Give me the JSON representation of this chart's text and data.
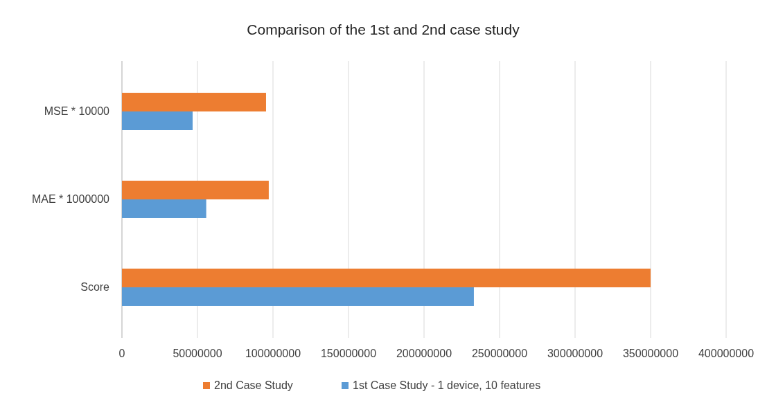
{
  "chart_data": {
    "type": "bar",
    "orientation": "horizontal",
    "title": "Comparison of the 1st and 2nd case study",
    "categories": [
      "MSE * 10000",
      "MAE * 1000000",
      "Score"
    ],
    "series": [
      {
        "name": "2nd Case Study",
        "color": "#ed7d31",
        "values": [
          95400000,
          97200000,
          350000000
        ]
      },
      {
        "name": "1st Case Study - 1 device, 10 features",
        "color": "#5b9bd5",
        "values": [
          46800000,
          55800000,
          233000000
        ]
      }
    ],
    "xlim": [
      0,
      400000000
    ],
    "xticks": [
      0,
      50000000,
      100000000,
      150000000,
      200000000,
      250000000,
      300000000,
      350000000,
      400000000
    ],
    "grid": "x",
    "legend": "bottom"
  }
}
